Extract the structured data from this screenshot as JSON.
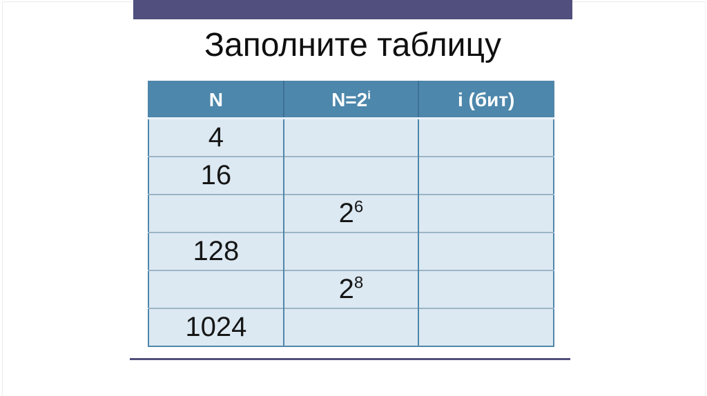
{
  "colors": {
    "top_bar": "#514F7D",
    "bottom_rule": "#514F7D",
    "header_bg": "#4D87AB",
    "header_text": "#FFFFFF",
    "row_bg": "#DCE9F2",
    "grid_vertical": "#4F86AA",
    "grid_horizontal": "#9BB3C5",
    "header_gap": "#E9F1F8",
    "title_text": "#0F0F0F"
  },
  "slide": {
    "title": "Заполните таблицу",
    "table": {
      "columns": [
        {
          "label": "N",
          "sup": ""
        },
        {
          "label": "N=2",
          "sup": "i"
        },
        {
          "label": "i (бит)",
          "sup": ""
        }
      ],
      "rows": [
        {
          "cells": [
            {
              "text": "4",
              "sup": ""
            },
            {
              "text": "",
              "sup": ""
            },
            {
              "text": "",
              "sup": ""
            }
          ]
        },
        {
          "cells": [
            {
              "text": "16",
              "sup": ""
            },
            {
              "text": "",
              "sup": ""
            },
            {
              "text": "",
              "sup": ""
            }
          ]
        },
        {
          "cells": [
            {
              "text": "",
              "sup": ""
            },
            {
              "text": "2",
              "sup": "6"
            },
            {
              "text": "",
              "sup": ""
            }
          ]
        },
        {
          "cells": [
            {
              "text": "128",
              "sup": ""
            },
            {
              "text": "",
              "sup": ""
            },
            {
              "text": "",
              "sup": ""
            }
          ]
        },
        {
          "cells": [
            {
              "text": "",
              "sup": ""
            },
            {
              "text": "2",
              "sup": "8"
            },
            {
              "text": "",
              "sup": ""
            }
          ]
        },
        {
          "cells": [
            {
              "text": "1024",
              "sup": ""
            },
            {
              "text": "",
              "sup": ""
            },
            {
              "text": "",
              "sup": ""
            }
          ]
        }
      ]
    }
  }
}
